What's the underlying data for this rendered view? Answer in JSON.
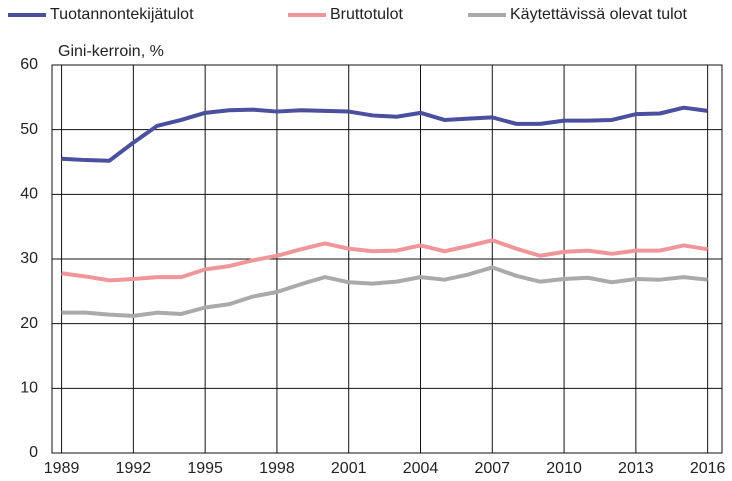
{
  "chart_data": {
    "type": "line",
    "y_label": "Gini-kerroin, %",
    "x": [
      1989,
      1990,
      1991,
      1992,
      1993,
      1994,
      1995,
      1996,
      1997,
      1998,
      1999,
      2000,
      2001,
      2002,
      2003,
      2004,
      2005,
      2006,
      2007,
      2008,
      2009,
      2010,
      2011,
      2012,
      2013,
      2014,
      2015,
      2016
    ],
    "series": [
      {
        "name": "Tuotannontekijätulot",
        "color": "#4a4f9e",
        "values": [
          45.5,
          45.3,
          45.2,
          48,
          50.6,
          51.5,
          52.6,
          53,
          53.1,
          52.8,
          53,
          52.9,
          52.8,
          52.2,
          52,
          52.6,
          51.5,
          51.7,
          51.9,
          50.9,
          50.9,
          51.4,
          51.4,
          51.5,
          52.4,
          52.5,
          53.4,
          52.9
        ]
      },
      {
        "name": "Bruttotulot",
        "color": "#f0969a",
        "values": [
          27.8,
          27.3,
          26.7,
          26.9,
          27.2,
          27.2,
          28.4,
          28.9,
          29.8,
          30.5,
          31.5,
          32.4,
          31.6,
          31.2,
          31.3,
          32.1,
          31.2,
          32.0,
          32.9,
          31.6,
          30.5,
          31.1,
          31.3,
          30.8,
          31.3,
          31.3,
          32.1,
          31.5
        ]
      },
      {
        "name": "Käytettävissä olevat tulot",
        "color": "#aaaaaa",
        "values": [
          21.7,
          21.7,
          21.4,
          21.2,
          21.7,
          21.5,
          22.5,
          23.0,
          24.2,
          24.9,
          26.1,
          27.2,
          26.4,
          26.2,
          26.5,
          27.2,
          26.8,
          27.6,
          28.7,
          27.4,
          26.5,
          26.9,
          27.1,
          26.4,
          26.9,
          26.8,
          27.2,
          26.8
        ]
      }
    ],
    "xlim": [
      1988.6,
      2016.6
    ],
    "xticks": [
      1989,
      1992,
      1995,
      1998,
      2001,
      2004,
      2007,
      2010,
      2013,
      2016
    ],
    "ylim": [
      0,
      60
    ],
    "yticks": [
      0,
      10,
      20,
      30,
      40,
      50,
      60
    ],
    "grid": true,
    "legend": "top"
  }
}
